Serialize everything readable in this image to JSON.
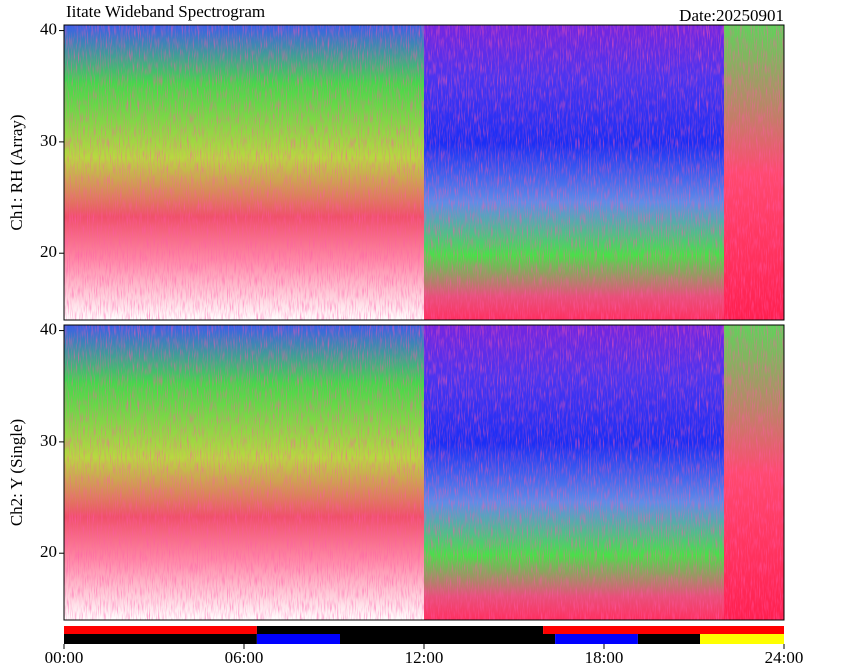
{
  "chart_data": {
    "type": "spectrogram",
    "title": "Iitate Wideband Spectrogram",
    "date": "Date:20250901",
    "xlim": [
      0,
      24
    ],
    "xticks": [
      {
        "value": 0,
        "label": "00:00"
      },
      {
        "value": 6,
        "label": "06:00"
      },
      {
        "value": 12,
        "label": "12:00"
      },
      {
        "value": 18,
        "label": "18:00"
      },
      {
        "value": 24,
        "label": "24:00"
      }
    ],
    "panels": [
      {
        "ylabel": "Ch1: RH (Array)",
        "ylim": [
          14,
          40.5
        ],
        "yticks": [
          20,
          30,
          40
        ]
      },
      {
        "ylabel": "Ch2: Y (Single)",
        "ylim": [
          14,
          40.5
        ],
        "yticks": [
          20,
          30,
          40
        ]
      }
    ],
    "status_rows": [
      {
        "segments": [
          {
            "start": 0,
            "end": 6.43,
            "color": "#ff0000"
          },
          {
            "start": 6.43,
            "end": 15.97,
            "color": "#000000"
          },
          {
            "start": 15.97,
            "end": 24,
            "color": "#ff0000"
          }
        ]
      },
      {
        "segments": [
          {
            "start": 0,
            "end": 6.43,
            "color": "#000000"
          },
          {
            "start": 6.43,
            "end": 9.2,
            "color": "#0000ff"
          },
          {
            "start": 9.2,
            "end": 16.37,
            "color": "#000000"
          },
          {
            "start": 16.37,
            "end": 19.13,
            "color": "#0000ff"
          },
          {
            "start": 19.13,
            "end": 21.2,
            "color": "#000000"
          },
          {
            "start": 21.2,
            "end": 24,
            "color": "#ffff00"
          }
        ]
      }
    ]
  }
}
